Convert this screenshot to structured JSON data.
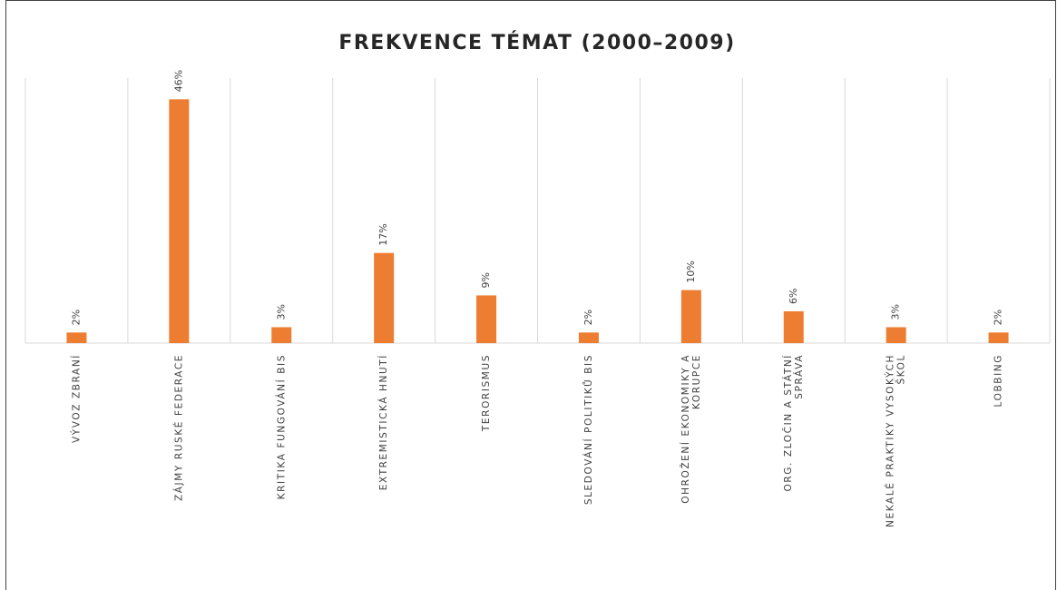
{
  "chart_data": {
    "type": "bar",
    "title": "FREKVENCE TÉMAT (2000–2009)",
    "categories": [
      "VÝVOZ ZBRANÍ",
      "ZÁJMY RUSKÉ FEDERACE",
      "KRITIKA FUNGOVÁNÍ BIS",
      "EXTREMISTICKÁ HNUTÍ",
      "TERORISMUS",
      "SLEDOVÁNÍ POLITIKŮ BIS",
      "OHROŽENÍ EKONOMIKY A KORUPCE",
      "ORG. ZLOČIN A STÁTNÍ SPRÁVA",
      "NEKALÉ PRAKTIKY VYSOKÝCH ŠKOL",
      "LOBBING"
    ],
    "values": [
      2,
      46,
      3,
      17,
      9,
      2,
      10,
      6,
      3,
      2
    ],
    "value_labels": [
      "2%",
      "46%",
      "3%",
      "17%",
      "9%",
      "2%",
      "10%",
      "6%",
      "3%",
      "2%"
    ],
    "color": "#ed7d31",
    "ylim": [
      0,
      50
    ]
  }
}
